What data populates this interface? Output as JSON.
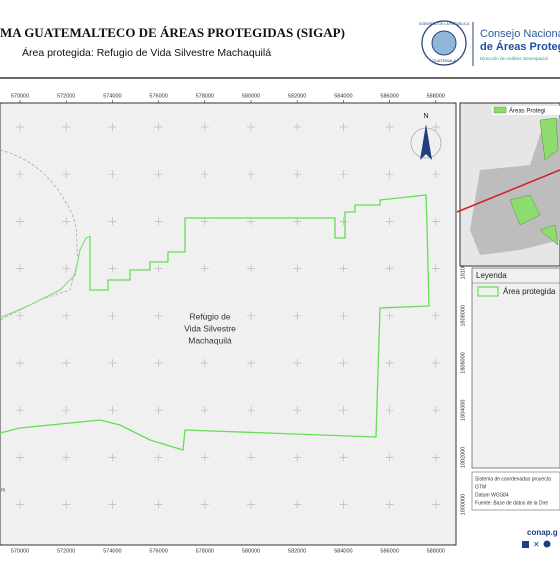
{
  "header": {
    "title": "MA GUATEMALTECO DE ÁREAS PROTEGIDAS  (SIGAP)",
    "subtitle": "Área protegida: Refugio de Vida Silvestre Machaquilá",
    "org_line1": "Consejo Nacional",
    "org_line2": "de Áreas Protegidas",
    "org_line3": "Dirección de Análisis Geoespacial",
    "seal_top": "GOBIERNO DE LA REPÚBLICA",
    "seal_bottom": "GUATEMALA"
  },
  "map": {
    "x_ticks": [
      570000,
      572000,
      574000,
      576000,
      578000,
      580000,
      582000,
      584000,
      586000,
      588000
    ],
    "y_ticks": [
      1816000,
      1814000,
      1812000,
      1810000,
      1808000,
      1806000,
      1804000,
      1802000,
      1800000
    ],
    "area_label": [
      "Refugio de",
      "Vida Silvestre",
      "Machaquilá"
    ],
    "north": "N",
    "scale_unit": "m"
  },
  "inset": {
    "legend": "Áreas Protegi"
  },
  "legend": {
    "title": "Leyenda",
    "item": "Área protegida"
  },
  "info": [
    "Sistema de coordenadas proyecta",
    "GTM",
    "Datum WGS84",
    "Fuente: Base de datos de la Dire"
  ],
  "footer": {
    "site": "conap.g"
  }
}
